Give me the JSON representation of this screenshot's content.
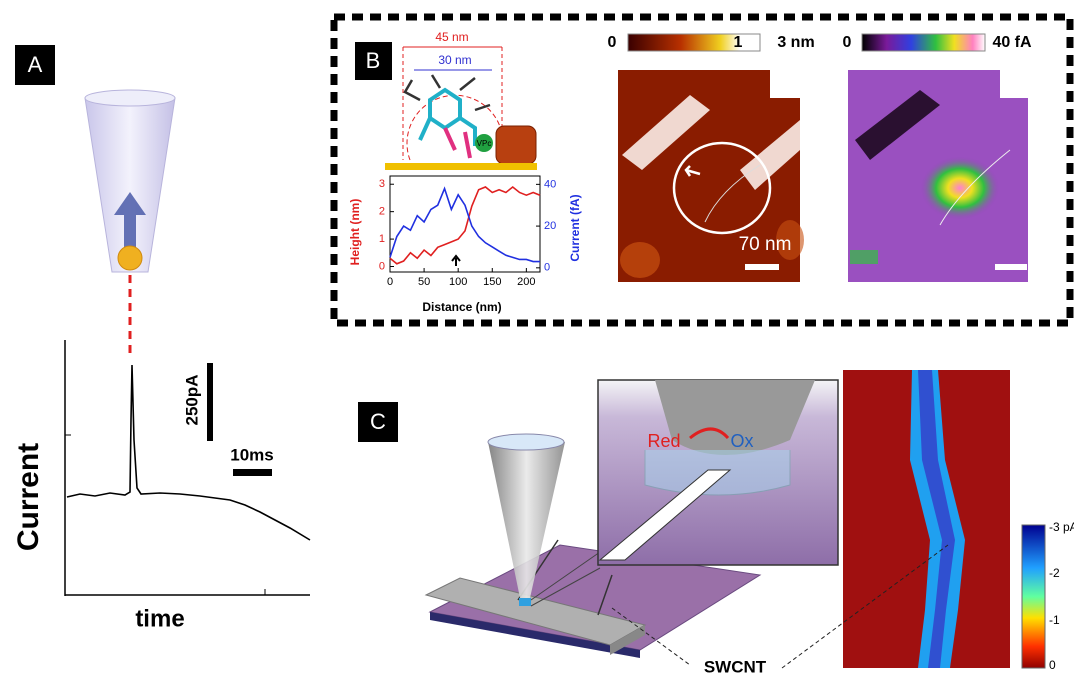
{
  "panels": {
    "A": {
      "label": "A",
      "scale_current": "250pA",
      "scale_time": "10ms",
      "y_label": "Current",
      "x_label": "time"
    },
    "B": {
      "label": "B",
      "outer_width": "45 nm",
      "inner_width": "30 nm",
      "molecule": "VPc",
      "height_bar": {
        "min": "0",
        "mid": "1",
        "max": "3 nm"
      },
      "current_bar": {
        "min": "0",
        "max": "40 fA"
      },
      "scale": "70 nm"
    },
    "C": {
      "label": "C",
      "red": "Red",
      "ox": "Ox",
      "swcnt": "SWCNT",
      "colorbar": [
        "-3 pA",
        "-2",
        "-1",
        "0"
      ]
    }
  },
  "chart_data": {
    "type": "line",
    "x_label": "Distance (nm)",
    "y_label": "Height (nm)",
    "y2_label": "Current (fA)",
    "x": [
      0,
      10,
      20,
      30,
      40,
      50,
      60,
      70,
      80,
      90,
      100,
      110,
      120,
      130,
      140,
      150,
      160,
      170,
      180,
      190,
      200,
      210,
      220
    ],
    "series": [
      {
        "color": "#e02020",
        "values": [
          0.3,
          0.1,
          0.2,
          0.5,
          0.3,
          0.6,
          0.4,
          0.7,
          0.8,
          0.9,
          1.0,
          1.3,
          2.2,
          2.8,
          2.9,
          2.7,
          2.8,
          2.7,
          2.9,
          2.7,
          2.6,
          2.7,
          2.6
        ]
      },
      {
        "color": "#2030e0",
        "axis": "y2",
        "values": [
          5,
          15,
          20,
          18,
          25,
          22,
          28,
          30,
          38,
          28,
          35,
          30,
          20,
          15,
          12,
          10,
          8,
          6,
          5,
          4,
          4,
          3,
          3
        ]
      }
    ],
    "xlim": [
      0,
      220
    ],
    "xticks": [
      0,
      50,
      100,
      150,
      200
    ],
    "ylim": [
      -0.2,
      3.3
    ],
    "yticks": [
      0,
      1,
      2,
      3
    ],
    "y2lim": [
      -2,
      44
    ],
    "y2ticks": [
      0,
      20,
      40
    ]
  }
}
